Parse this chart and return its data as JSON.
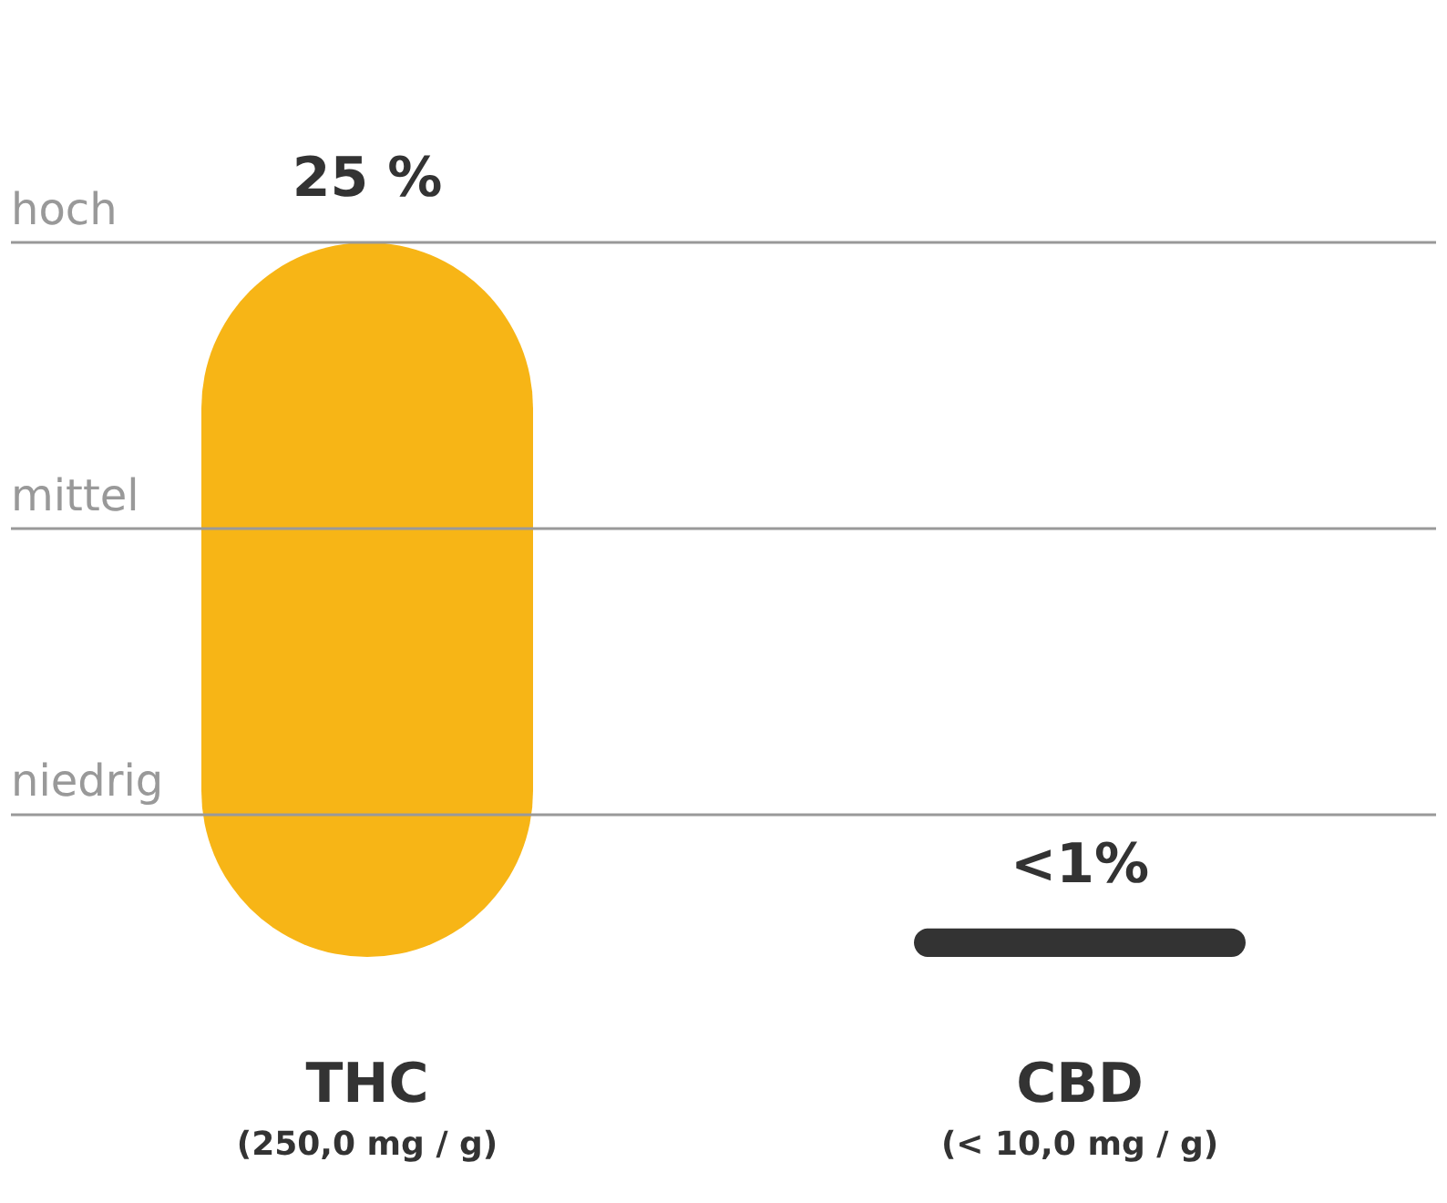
{
  "chart_data": {
    "type": "bar",
    "ylim": [
      0,
      25
    ],
    "tick_labels": "x",
    "categories": [
      "THC\n(250,0 mg / g)",
      "CBD\n(< 10,0 mg / g)"
    ],
    "values": [
      25,
      1
    ],
    "colors": [
      "#f7b516",
      "#333333"
    ],
    "value_labels": [
      "25 %",
      "<1%"
    ],
    "ref_lines": [
      {
        "axis": "y",
        "value": 25,
        "label": "hoch",
        "color": "#999999"
      },
      {
        "axis": "y",
        "value": 15,
        "label": "mittel",
        "color": "#999999"
      },
      {
        "axis": "y",
        "value": 5,
        "label": "niedrig",
        "color": "#999999"
      }
    ]
  }
}
